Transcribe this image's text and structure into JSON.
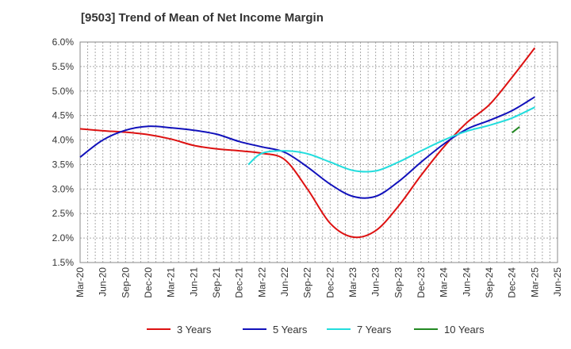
{
  "chart_data": {
    "type": "line",
    "title": "[9503]  Trend of Mean of Net Income Margin",
    "xlabel": "",
    "ylabel": "",
    "ylim": [
      1.5,
      6.0
    ],
    "ytick_labels": [
      "1.5%",
      "2.0%",
      "2.5%",
      "3.0%",
      "3.5%",
      "4.0%",
      "4.5%",
      "5.0%",
      "5.5%",
      "6.0%"
    ],
    "ytick_values": [
      1.5,
      2.0,
      2.5,
      3.0,
      3.5,
      4.0,
      4.5,
      5.0,
      5.5,
      6.0
    ],
    "x_categories": [
      "Mar-20",
      "Jun-20",
      "Sep-20",
      "Dec-20",
      "Mar-21",
      "Jun-21",
      "Sep-21",
      "Dec-21",
      "Mar-22",
      "Jun-22",
      "Sep-22",
      "Dec-22",
      "Mar-23",
      "Jun-23",
      "Sep-23",
      "Dec-23",
      "Mar-24",
      "Jun-24",
      "Sep-24",
      "Dec-24",
      "Mar-25",
      "Jun-25"
    ],
    "grid": true,
    "legend_position": "bottom",
    "series": [
      {
        "name": "3 Years",
        "color": "#dd1111",
        "start_index": 0,
        "values": [
          4.23,
          4.19,
          4.16,
          4.11,
          4.02,
          3.89,
          3.82,
          3.78,
          3.73,
          3.6,
          3.0,
          2.3,
          2.02,
          2.15,
          2.65,
          3.28,
          3.86,
          4.35,
          4.72,
          5.28,
          5.88
        ]
      },
      {
        "name": "5 Years",
        "color": "#1111bb",
        "start_index": 0,
        "values": [
          3.65,
          4.0,
          4.2,
          4.28,
          4.25,
          4.2,
          4.12,
          3.97,
          3.86,
          3.75,
          3.45,
          3.1,
          2.85,
          2.85,
          3.15,
          3.55,
          3.92,
          4.22,
          4.4,
          4.6,
          4.88
        ]
      },
      {
        "name": "7 Years",
        "color": "#22dddd",
        "start_index": 7.4,
        "values": [
          3.5,
          3.73,
          3.78,
          3.72,
          3.55,
          3.38,
          3.37,
          3.55,
          3.78,
          4.0,
          4.18,
          4.3,
          4.45,
          4.67
        ]
      },
      {
        "name": "10 Years",
        "color": "#228822",
        "start_index": 19.0,
        "values": [
          4.15,
          4.27
        ]
      }
    ],
    "x_offsets": {
      "7 Years": [
        7.4,
        8,
        9,
        10,
        11,
        12,
        13,
        14,
        15,
        16,
        17,
        18,
        19,
        20
      ],
      "10 Years": [
        19.0,
        19.33
      ]
    }
  }
}
